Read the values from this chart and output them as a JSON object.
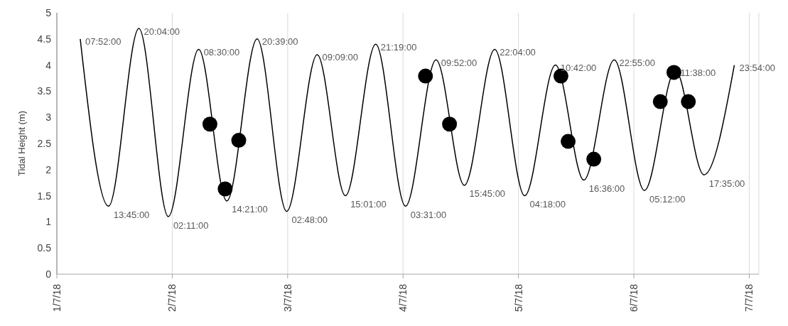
{
  "chart_data": {
    "type": "line",
    "ylabel": "Tidal Height (m)",
    "ylim": [
      0,
      5
    ],
    "yticks": [
      0,
      0.5,
      1,
      1.5,
      2,
      2.5,
      3,
      3.5,
      4,
      4.5,
      5
    ],
    "xlim": [
      "--07-01",
      "--07-07T02:00"
    ],
    "xticks": [
      {
        "value": "--07-01",
        "label": "1/7/18"
      },
      {
        "value": "--07-02",
        "label": "2/7/18"
      },
      {
        "value": "--07-03",
        "label": "3/7/18"
      },
      {
        "value": "--07-04",
        "label": "4/7/18"
      },
      {
        "value": "--07-05",
        "label": "5/7/18"
      },
      {
        "value": "--07-06",
        "label": "6/7/18"
      },
      {
        "value": "--07-07",
        "label": "7/7/18"
      }
    ],
    "grid": "x",
    "series": [
      {
        "color": "#000000",
        "marker": "none",
        "line_style": "solid",
        "x": [
          "--07-01T04:52",
          "--07-01T10:45",
          "--07-01T17:04",
          "--07-01T23:11",
          "--07-02T05:30",
          "--07-02T11:21",
          "--07-02T17:39",
          "--07-02T23:48",
          "--07-03T06:09",
          "--07-03T12:01",
          "--07-03T18:19",
          "--07-04T00:31",
          "--07-04T06:52",
          "--07-04T12:45",
          "--07-04T19:04",
          "--07-05T01:18",
          "--07-05T07:42",
          "--07-05T13:36",
          "--07-05T19:55",
          "--07-06T02:12",
          "--07-06T08:38",
          "--07-06T14:35",
          "--07-06T20:54"
        ],
        "values": [
          4.5,
          1.3,
          4.7,
          1.1,
          4.3,
          1.4,
          4.5,
          1.2,
          4.2,
          1.5,
          4.4,
          1.3,
          4.1,
          1.7,
          4.3,
          1.5,
          4.0,
          1.8,
          4.1,
          1.6,
          3.9,
          1.9,
          4.0
        ]
      },
      {
        "type": "scatter",
        "color": "#000000",
        "marker": "circle",
        "x": [
          "--07-02T07:50",
          "--07-02T11:00",
          "--07-02T13:50",
          "--07-04T04:40",
          "--07-04T09:40",
          "--07-05T08:50",
          "--07-05T10:20",
          "--07-05T15:40",
          "--07-06T05:30",
          "--07-06T08:20",
          "--07-06T11:20"
        ],
        "values": [
          2.87,
          1.63,
          2.56,
          3.79,
          2.87,
          3.79,
          2.54,
          2.2,
          3.3,
          3.86,
          3.3
        ]
      }
    ],
    "annotations": [
      {
        "text": "07:52:00",
        "x": "--07-01T04:52",
        "y": 4.5
      },
      {
        "text": "13:45:00",
        "x": "--07-01T10:45",
        "y": 1.3
      },
      {
        "text": "20:04:00",
        "x": "--07-01T17:04",
        "y": 4.7
      },
      {
        "text": "02:11:00",
        "x": "--07-01T23:11",
        "y": 1.1
      },
      {
        "text": "08:30:00",
        "x": "--07-02T05:30",
        "y": 4.3
      },
      {
        "text": "14:21:00",
        "x": "--07-02T11:21",
        "y": 1.4
      },
      {
        "text": "20:39:00",
        "x": "--07-02T17:39",
        "y": 4.5
      },
      {
        "text": "02:48:00",
        "x": "--07-02T23:48",
        "y": 1.2
      },
      {
        "text": "09:09:00",
        "x": "--07-03T06:09",
        "y": 4.2
      },
      {
        "text": "15:01:00",
        "x": "--07-03T12:01",
        "y": 1.5
      },
      {
        "text": "21:19:00",
        "x": "--07-03T18:19",
        "y": 4.4
      },
      {
        "text": "03:31:00",
        "x": "--07-04T00:31",
        "y": 1.3
      },
      {
        "text": "09:52:00",
        "x": "--07-04T06:52",
        "y": 4.1
      },
      {
        "text": "15:45:00",
        "x": "--07-04T12:45",
        "y": 1.7
      },
      {
        "text": "22:04:00",
        "x": "--07-04T19:04",
        "y": 4.3
      },
      {
        "text": "04:18:00",
        "x": "--07-05T01:18",
        "y": 1.5
      },
      {
        "text": "10:42:00",
        "x": "--07-05T07:42",
        "y": 4.0
      },
      {
        "text": "16:36:00",
        "x": "--07-05T13:36",
        "y": 1.8
      },
      {
        "text": "22:55:00",
        "x": "--07-05T19:55",
        "y": 4.1
      },
      {
        "text": "05:12:00",
        "x": "--07-06T02:12",
        "y": 1.6
      },
      {
        "text": "11:38:00",
        "x": "--07-06T08:38",
        "y": 3.9
      },
      {
        "text": "17:35:00",
        "x": "--07-06T14:35",
        "y": 1.9
      },
      {
        "text": "23:54:00",
        "x": "--07-06T20:54",
        "y": 4.0
      }
    ]
  }
}
